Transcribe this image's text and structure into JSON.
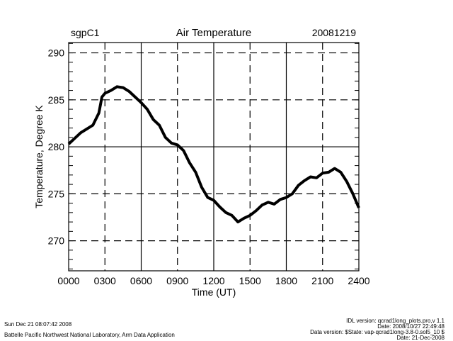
{
  "chart_data": {
    "type": "line",
    "title": "Air Temperature",
    "site": "sgpC1",
    "date": "20081219",
    "xlabel": "Time (UT)",
    "ylabel": "Temperature, Degree K",
    "xlim": [
      0,
      24
    ],
    "ylim": [
      266.8,
      291.1
    ],
    "x_ticks": [
      0,
      3,
      6,
      9,
      12,
      15,
      18,
      21,
      24
    ],
    "x_tick_labels": [
      "0000",
      "0300",
      "0600",
      "0900",
      "1200",
      "1500",
      "1800",
      "2100",
      "2400"
    ],
    "y_ticks": [
      270,
      275,
      280,
      285,
      290
    ],
    "y_tick_labels": [
      "270",
      "275",
      "280",
      "285",
      "290"
    ],
    "grid": true,
    "series": [
      {
        "name": "Air Temperature",
        "x": [
          0,
          0.5,
          1,
          1.5,
          2,
          2.5,
          2.75,
          3,
          3.5,
          4,
          4.5,
          5,
          5.5,
          6,
          6.5,
          7,
          7.5,
          8,
          8.5,
          9,
          9.5,
          10,
          10.5,
          11,
          11.5,
          12,
          12.5,
          13,
          13.5,
          14,
          14.5,
          15,
          15.5,
          16,
          16.5,
          17,
          17.5,
          18,
          18.5,
          19,
          19.5,
          20,
          20.5,
          21,
          21.5,
          22,
          22.5,
          23,
          23.5,
          24
        ],
        "y": [
          280.3,
          280.9,
          281.5,
          281.9,
          282.3,
          283.6,
          285.3,
          285.7,
          286.0,
          286.4,
          286.3,
          285.9,
          285.3,
          284.7,
          284.0,
          282.9,
          282.3,
          281.0,
          280.4,
          280.2,
          279.6,
          278.3,
          277.3,
          275.7,
          274.6,
          274.3,
          273.6,
          273.0,
          272.7,
          272.0,
          272.4,
          272.7,
          273.2,
          273.8,
          274.1,
          273.9,
          274.4,
          274.6,
          275.0,
          275.9,
          276.4,
          276.8,
          276.7,
          277.2,
          277.3,
          277.7,
          277.3,
          276.3,
          275.0,
          273.5
        ]
      }
    ]
  },
  "footer": {
    "timestamp": "Sun Dec 21 08:07:42 2008",
    "organization": "Battelle Pacific Northwest National Laboratory, Arm Data Application",
    "idl_version": "IDL version: qcrad1long_plots.pro,v 1.1",
    "idl_date": "Date: 2008/10/27 22:49:48",
    "data_version": "Data version: $State: vap-qcrad1long-3.8-0.sol5_10 $",
    "data_date": "Date: 21-Dec-2008"
  }
}
